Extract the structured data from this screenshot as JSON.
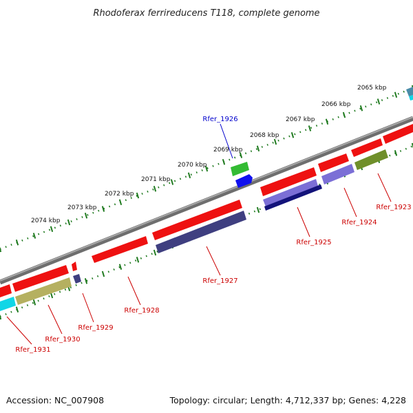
{
  "title": "Rhodoferax ferrireducens T118, complete genome",
  "footer": {
    "accession": "Accession: NC_007908",
    "summary": "Topology: circular; Length: 4,712,337 bp; Genes: 4,228"
  },
  "colors": {
    "background": "#ffffff",
    "backbone": "#8c8c8c",
    "ticks": "#1f7a1f",
    "label_red": "#cc0000",
    "label_blue": "#0000cc",
    "gene_red": "#ee1111",
    "gene_green": "#33bb33",
    "gene_blue": "#1111ee",
    "gene_navy": "#3f3f80",
    "gene_purple": "#7b6fd6",
    "gene_darkblue": "#13137a",
    "gene_olive": "#6f8f2a",
    "gene_khaki": "#b5b060",
    "gene_cyan": "#11d6e6",
    "gene_teal": "#4a8ca8"
  },
  "kbp_ticks": [
    "2065 kbp",
    "2066 kbp",
    "2067 kbp",
    "2068 kbp",
    "2069 kbp",
    "2070 kbp",
    "2071 kbp",
    "2072 kbp",
    "2073 kbp",
    "2074 kbp"
  ],
  "gene_labels": [
    "Rfer_1923",
    "Rfer_1924",
    "Rfer_1925",
    "Rfer_1926",
    "Rfer_1927",
    "Rfer_1928",
    "Rfer_1929",
    "Rfer_1930",
    "Rfer_1931"
  ]
}
